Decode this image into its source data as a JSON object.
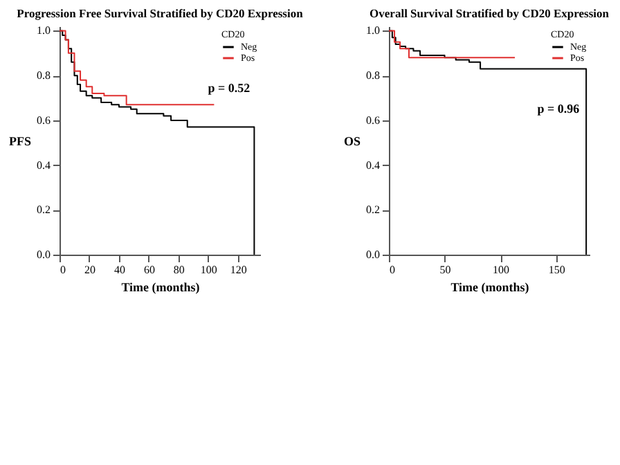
{
  "chart_data": [
    {
      "type": "step",
      "title": "Progression Free Survival Stratified by CD20 Expression",
      "xlabel": "Time (months)",
      "ylabel": "PFS",
      "legend_title": "CD20",
      "legend": "top right",
      "annotations": [
        "p = 0.52"
      ],
      "xlim": [
        0,
        135
      ],
      "ylim": [
        0,
        1.02
      ],
      "xticks": [
        0,
        20,
        40,
        60,
        80,
        100,
        120
      ],
      "yticks": [
        {
          "value": 0,
          "label": "0.0"
        },
        {
          "value": 0.2,
          "label": "0.2"
        },
        {
          "value": 0.4,
          "label": "0.4"
        },
        {
          "value": 0.6,
          "label": "0.6"
        },
        {
          "value": 0.8,
          "label": "0.8"
        },
        {
          "value": 1,
          "label": "1.0"
        }
      ],
      "grid": false,
      "marker": "none",
      "series": [
        {
          "name": "Neg",
          "color": "#000000",
          "x": [
            0,
            2,
            4,
            6,
            8,
            10,
            12,
            14,
            18,
            22,
            28,
            35,
            40,
            48,
            52,
            70,
            75,
            86,
            131,
            131
          ],
          "values": [
            1.0,
            0.98,
            0.96,
            0.92,
            0.86,
            0.8,
            0.76,
            0.73,
            0.71,
            0.7,
            0.68,
            0.67,
            0.66,
            0.65,
            0.63,
            0.62,
            0.6,
            0.57,
            0.57,
            0.0
          ]
        },
        {
          "name": "Pos",
          "color": "#e03030",
          "x": [
            0,
            4,
            6,
            10,
            14,
            18,
            22,
            30,
            45,
            104
          ],
          "values": [
            1.0,
            0.96,
            0.9,
            0.82,
            0.78,
            0.75,
            0.72,
            0.71,
            0.67,
            0.67
          ]
        }
      ]
    },
    {
      "type": "step",
      "title": "Overall Survival Stratified by CD20 Expression",
      "xlabel": "Time (months)",
      "ylabel": "OS",
      "legend_title": "CD20",
      "legend": "top right",
      "annotations": [
        "p = 0.96"
      ],
      "xlim": [
        0,
        180
      ],
      "ylim": [
        0,
        1.02
      ],
      "xticks": [
        0,
        50,
        100,
        150
      ],
      "yticks": [
        {
          "value": 0,
          "label": "0.0"
        },
        {
          "value": 0.2,
          "label": "0.2"
        },
        {
          "value": 0.4,
          "label": "0.4"
        },
        {
          "value": 0.6,
          "label": "0.6"
        },
        {
          "value": 0.8,
          "label": "0.8"
        },
        {
          "value": 1,
          "label": "1.0"
        }
      ],
      "grid": false,
      "marker": "none",
      "series": [
        {
          "name": "Neg",
          "color": "#000000",
          "x": [
            0,
            3,
            6,
            10,
            15,
            22,
            28,
            50,
            60,
            72,
            82,
            177,
            177
          ],
          "values": [
            1.0,
            0.97,
            0.94,
            0.93,
            0.92,
            0.91,
            0.89,
            0.88,
            0.87,
            0.86,
            0.83,
            0.83,
            0.0
          ]
        },
        {
          "name": "Pos",
          "color": "#e03030",
          "x": [
            0,
            5,
            10,
            18,
            113
          ],
          "values": [
            1.0,
            0.95,
            0.92,
            0.88,
            0.88
          ]
        }
      ]
    }
  ]
}
